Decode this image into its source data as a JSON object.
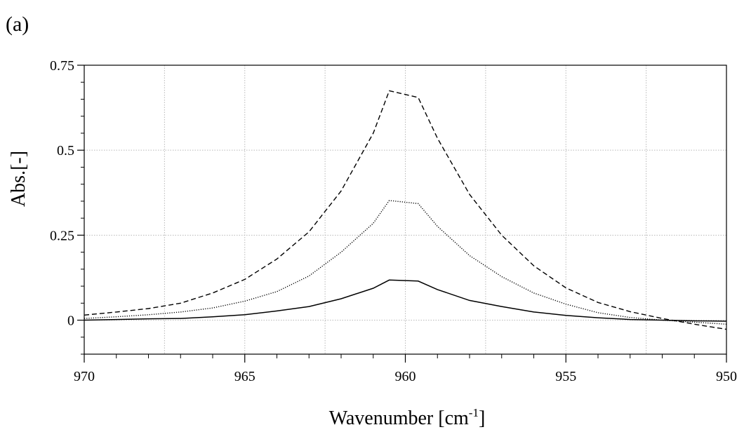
{
  "panel_label": "(a)",
  "chart_data": {
    "type": "line",
    "title": "",
    "xlabel": "Wavenumber [cm",
    "xlabel_superscript": "-1",
    "xlabel_suffix": "]",
    "ylabel": "Abs.[-]",
    "xlim": [
      970,
      950
    ],
    "ylim": [
      -0.1,
      0.75
    ],
    "x_ticks": [
      970,
      965,
      960,
      955,
      950
    ],
    "x_tick_labels": [
      "970",
      "965",
      "960",
      "955",
      "950"
    ],
    "y_ticks": [
      0,
      0.25,
      0.5,
      0.75
    ],
    "y_tick_labels": [
      "0",
      "0.25",
      "0.5",
      "0.75"
    ],
    "x_grid": [
      967.5,
      965,
      962.5,
      960,
      957.5,
      955,
      952.5
    ],
    "y_grid": [
      0,
      0.25,
      0.5
    ],
    "grid": true,
    "series": [
      {
        "style": "dashed",
        "x": [
          970,
          969,
          968,
          967,
          966,
          965,
          964,
          963,
          962,
          961,
          960.5,
          959.6,
          959,
          958,
          957,
          956,
          955,
          954,
          953,
          952,
          951,
          950
        ],
        "y": [
          0.015,
          0.024,
          0.034,
          0.05,
          0.08,
          0.12,
          0.18,
          0.26,
          0.38,
          0.55,
          0.675,
          0.655,
          0.535,
          0.37,
          0.25,
          0.16,
          0.095,
          0.052,
          0.025,
          0.005,
          -0.012,
          -0.027
        ]
      },
      {
        "style": "dotted",
        "x": [
          970,
          969,
          968,
          967,
          966,
          965,
          964,
          963,
          962,
          961,
          960.5,
          959.6,
          959,
          958,
          957,
          956,
          955,
          954,
          953,
          952,
          951,
          950
        ],
        "y": [
          0.005,
          0.01,
          0.016,
          0.024,
          0.036,
          0.056,
          0.084,
          0.13,
          0.2,
          0.285,
          0.352,
          0.343,
          0.276,
          0.19,
          0.128,
          0.08,
          0.047,
          0.022,
          0.008,
          0.0,
          -0.006,
          -0.012
        ]
      },
      {
        "style": "solid",
        "x": [
          970,
          969,
          968,
          967,
          966,
          965,
          964,
          963,
          962,
          961,
          960.5,
          959.6,
          959,
          958,
          957,
          956,
          955,
          954,
          953,
          952,
          951,
          950
        ],
        "y": [
          0.0,
          0.002,
          0.004,
          0.005,
          0.01,
          0.016,
          0.027,
          0.04,
          0.063,
          0.094,
          0.118,
          0.115,
          0.09,
          0.058,
          0.04,
          0.024,
          0.014,
          0.007,
          0.002,
          0.0,
          -0.002,
          -0.003
        ]
      }
    ]
  }
}
